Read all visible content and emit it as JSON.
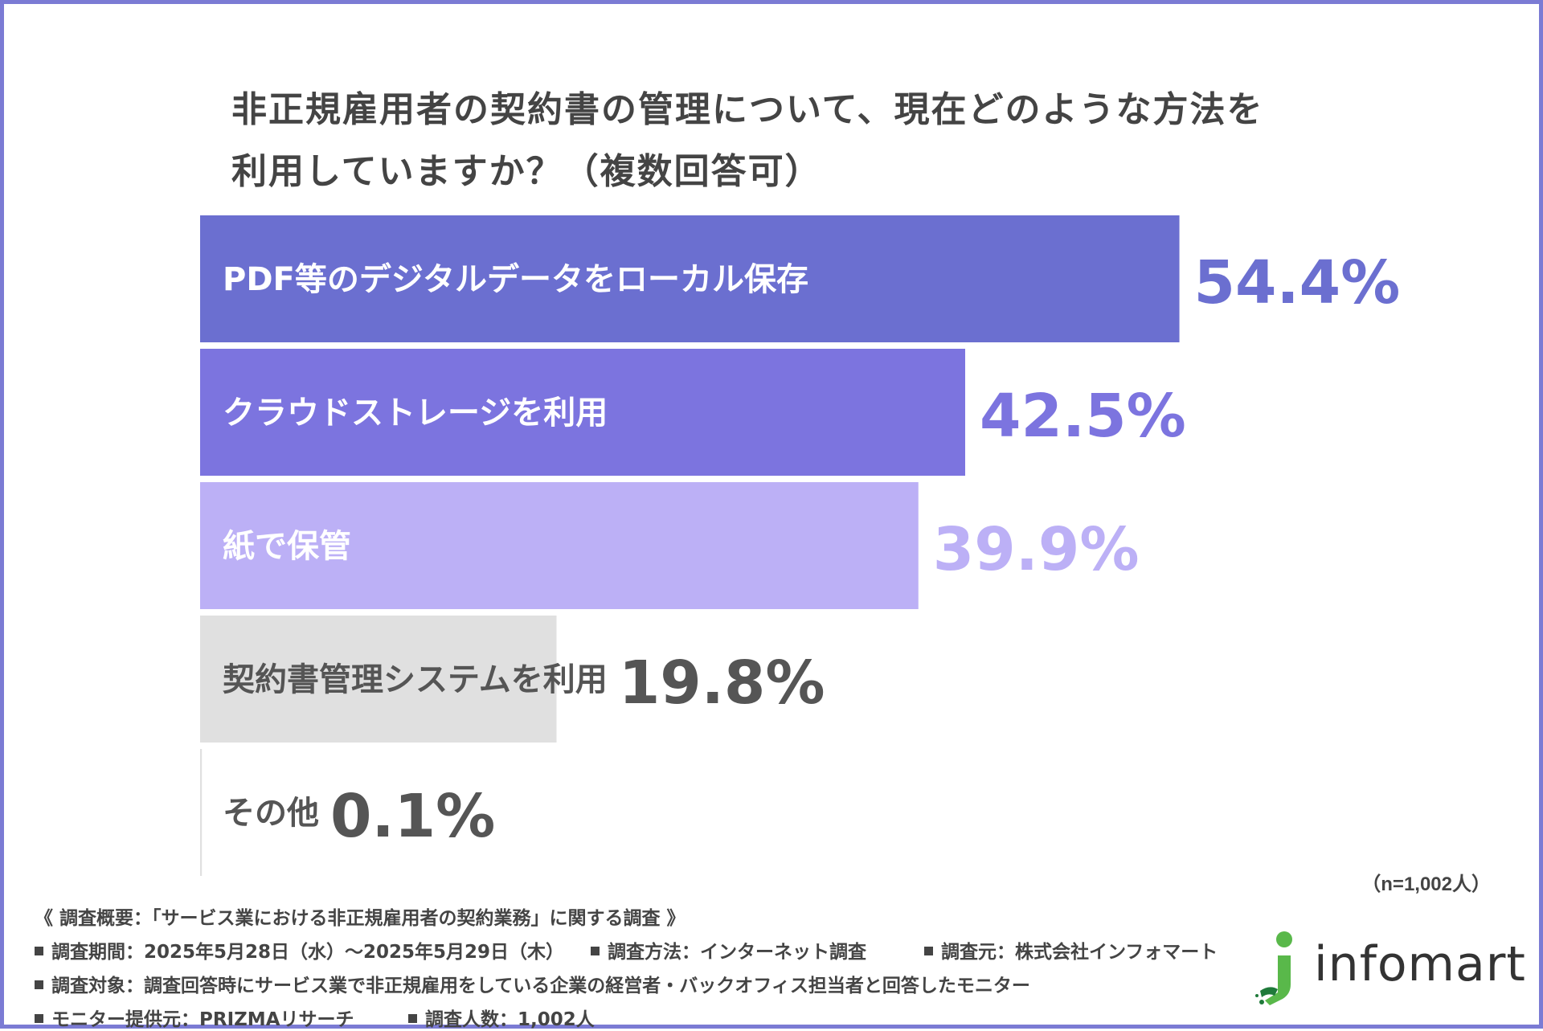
{
  "title": {
    "line1": "非正規雇用者の契約書の管理について、現在どのような方法を",
    "line2": "利用していますか？（複数回答可）"
  },
  "chart_data": {
    "type": "bar",
    "orientation": "horizontal",
    "categories": [
      "PDF等のデジタルデータをローカル保存",
      "クラウドストレージを利用",
      "紙で保管",
      "契約書管理システムを利用",
      "その他"
    ],
    "values": [
      54.4,
      42.5,
      39.9,
      19.8,
      0.1
    ],
    "value_labels": [
      "54.4%",
      "42.5%",
      "39.9%",
      "19.8%",
      "0.1%"
    ],
    "bar_colors": [
      "#6b6fd0",
      "#7c74df",
      "#bcb0f6",
      "#e0e0e0",
      "#e0e0e0"
    ],
    "label_colors": [
      "#ffffff",
      "#ffffff",
      "#ffffff",
      "#555555",
      "#555555"
    ],
    "value_colors": [
      "#6b6fd0",
      "#7c74df",
      "#bcb0f6",
      "#555555",
      "#555555"
    ],
    "xlim": [
      0,
      100
    ]
  },
  "sample_note": "（n=1,002人）",
  "footer": {
    "summary": "《 調査概要：「サービス業における非正規雇用者の契約業務」に関する調査 》",
    "period": "調査期間：2025年5月28日（水）〜2025年5月29日（木）",
    "method": "調査方法：インターネット調査",
    "source": "調査元：株式会社インフォマート",
    "target": "調査対象：調査回答時にサービス業で非正規雇用をしている企業の経営者・バックオフィス担当者と回答したモニター",
    "provider": "モニター提供元：PRIZMAリサーチ",
    "count": "調査人数：1,002人"
  },
  "logo": {
    "text": "infomart",
    "icon": "infomart-person-icon"
  }
}
